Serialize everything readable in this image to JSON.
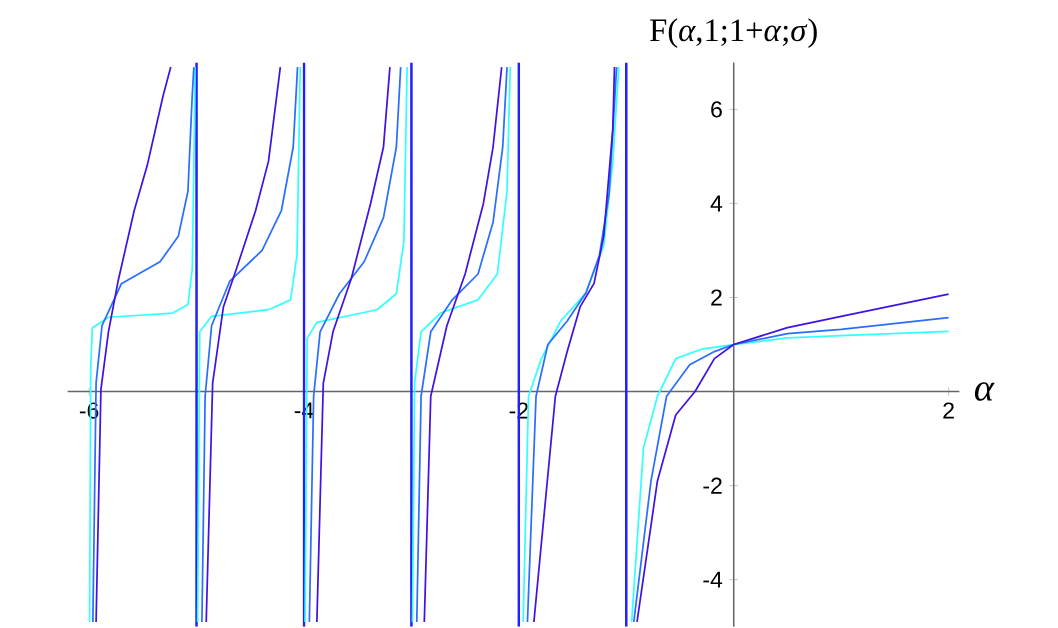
{
  "chart_data": {
    "type": "line",
    "xlabel": "α",
    "ylabel": "F(*α*,1;1+*α*;*σ*)",
    "xlim": [
      -6.2,
      2.1
    ],
    "ylim": [
      -5,
      7
    ],
    "xticks": [
      -6,
      -4,
      -2,
      2
    ],
    "yticks": [
      -4,
      -2,
      2,
      4,
      6
    ],
    "ref_lines": [
      {
        "axis": "x",
        "value": -5,
        "color": "#1f1fff"
      },
      {
        "axis": "x",
        "value": -4,
        "color": "#1f1fff"
      },
      {
        "axis": "x",
        "value": -3,
        "color": "#1f1fff"
      },
      {
        "axis": "x",
        "value": -2,
        "color": "#1f1fff"
      },
      {
        "axis": "x",
        "value": -1,
        "color": "#1f1fff"
      }
    ],
    "series": [
      {
        "color": "#33ffff",
        "x": [
          -5.995,
          -5.985,
          -5.97,
          -5.82,
          -5.22,
          -5.08,
          -5.04,
          -5.02,
          -5.015,
          -5,
          -4.99,
          -4.97,
          -4.86,
          -4.33,
          -4.125,
          -4.065,
          -4.035,
          -4,
          -3.99,
          -3.97,
          -3.88,
          -3.32,
          -3.14,
          -3.07,
          -3.04,
          -3,
          -2.99,
          -2.97,
          -2.91,
          -2.73,
          -2.38,
          -2.2,
          -2.11,
          -2.08,
          -2,
          -1.96,
          -1.91,
          -1.79,
          -1.61,
          -1.375,
          -1.21,
          -1.125,
          -1.07,
          -1,
          -0.95,
          -0.84,
          -0.71,
          -0.54,
          -0.3,
          0,
          0.5,
          1,
          2
        ],
        "values": [
          -4.9,
          0.5,
          1.35,
          1.58,
          1.67,
          1.85,
          2.6,
          5.6,
          6.9,
          null,
          -4.9,
          1.27,
          1.6,
          1.74,
          1.95,
          2.9,
          6.9,
          null,
          -4.9,
          1.13,
          1.47,
          1.74,
          2.08,
          3.2,
          6.9,
          null,
          -4.9,
          0.18,
          1.27,
          1.67,
          1.95,
          2.5,
          4.26,
          6.9,
          null,
          -4.9,
          -0.1,
          0.7,
          1.5,
          2.1,
          3.1,
          4.9,
          6.9,
          null,
          -4.9,
          -1.2,
          -0.1,
          0.7,
          0.9,
          1.0,
          1.14,
          1.19,
          1.28
        ]
      },
      {
        "color": "#2a6eff",
        "x": [
          -5.965,
          -5.935,
          -5.88,
          -5.7,
          -5.34,
          -5.17,
          -5.08,
          -5.04,
          -5.025,
          -5,
          -4.95,
          -4.92,
          -4.86,
          -4.69,
          -4.39,
          -4.21,
          -4.1,
          -4.06,
          -4,
          -3.95,
          -3.91,
          -3.85,
          -3.67,
          -3.44,
          -3.26,
          -3.14,
          -3.1,
          -3,
          -2.95,
          -2.91,
          -2.82,
          -2.62,
          -2.38,
          -2.24,
          -2.15,
          -2.11,
          -2,
          -1.92,
          -1.84,
          -1.73,
          -1.55,
          -1.375,
          -1.25,
          -1.16,
          -1.09,
          -1,
          -0.93,
          -0.77,
          -0.625,
          -0.41,
          -0.18,
          0,
          0.5,
          1,
          2
        ],
        "values": [
          -4.9,
          0.18,
          1.4,
          2.29,
          2.76,
          3.3,
          4.26,
          6.3,
          6.9,
          null,
          -4.9,
          -0.1,
          1.4,
          2.35,
          3.0,
          3.85,
          5.2,
          6.9,
          null,
          -4.9,
          -0.1,
          1.27,
          2.08,
          2.76,
          3.7,
          5.2,
          6.9,
          null,
          -4.9,
          -0.1,
          1.27,
          1.95,
          2.5,
          3.6,
          5.2,
          6.9,
          null,
          -4.9,
          -0.1,
          1.0,
          1.5,
          2.1,
          2.9,
          4.2,
          6.9,
          null,
          -4.9,
          -1.9,
          -0.1,
          0.57,
          0.85,
          1,
          1.23,
          1.32,
          1.57
        ]
      },
      {
        "color": "#4012e6",
        "x": [
          -5.935,
          -5.89,
          -5.82,
          -5.73,
          -5.58,
          -5.46,
          -5.31,
          -5.24,
          -5,
          -4.91,
          -4.85,
          -4.75,
          -4.63,
          -4.45,
          -4.33,
          -4.22,
          -4,
          -3.88,
          -3.82,
          -3.73,
          -3.56,
          -3.38,
          -3.26,
          -3.2,
          -3,
          -2.88,
          -2.82,
          -2.67,
          -2.5,
          -2.33,
          -2.24,
          -2.16,
          -2,
          -1.86,
          -1.66,
          -1.55,
          -1.43,
          -1.3,
          -1.21,
          -1.125,
          -1.11,
          -1,
          -0.9,
          -0.71,
          -0.54,
          -0.36,
          -0.18,
          0,
          0.5,
          1,
          2
        ],
        "values": [
          -4.9,
          0.04,
          1.27,
          2.35,
          3.85,
          4.8,
          6.3,
          6.9,
          null,
          -4.9,
          0.18,
          1.8,
          2.6,
          3.85,
          4.9,
          6.9,
          null,
          -4.9,
          0.18,
          1.27,
          2.4,
          4.0,
          5.2,
          6.9,
          null,
          -4.9,
          -0.1,
          1.4,
          2.5,
          4.0,
          5.2,
          6.9,
          null,
          -4.9,
          -0.1,
          0.85,
          1.8,
          2.3,
          3.3,
          5.6,
          6.9,
          null,
          -4.9,
          -1.9,
          -0.5,
          0,
          0.7,
          1,
          1.36,
          1.6,
          2.07
        ]
      }
    ]
  }
}
